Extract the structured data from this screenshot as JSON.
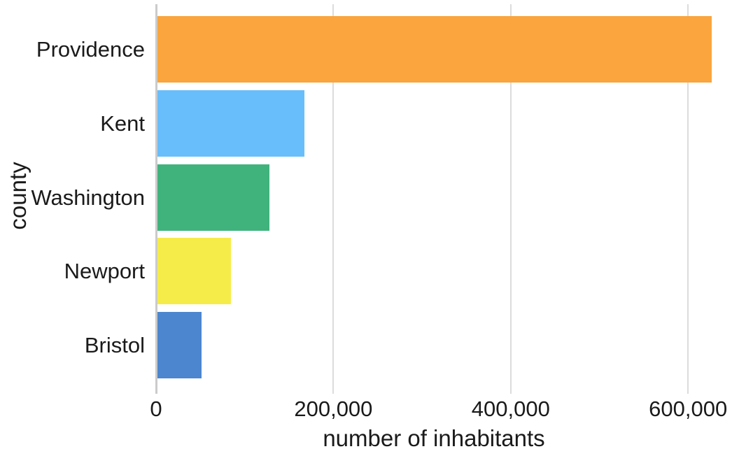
{
  "chart_data": {
    "type": "bar",
    "orientation": "horizontal",
    "title": "",
    "xlabel": "number of inhabitants",
    "ylabel": "county",
    "categories": [
      "Providence",
      "Kent",
      "Washington",
      "Newport",
      "Bristol"
    ],
    "values": [
      626667,
      166158,
      126979,
      82888,
      49875
    ],
    "bar_colors": [
      "#FAA53D",
      "#68BEFB",
      "#40B37D",
      "#F6EC49",
      "#4B86CF"
    ],
    "xlim": [
      0,
      626667
    ],
    "xticks": [
      0,
      200000,
      400000,
      600000
    ],
    "xtick_labels": [
      "0",
      "200,000",
      "400,000",
      "600,000"
    ],
    "grid": "vertical-gridlines-only",
    "legend": "none"
  },
  "style": {
    "background": "#FFFFFF",
    "grid_color": "#DCDCDC",
    "zero_line_color": "#CBCBCB",
    "text_color": "#1A1A1A"
  }
}
